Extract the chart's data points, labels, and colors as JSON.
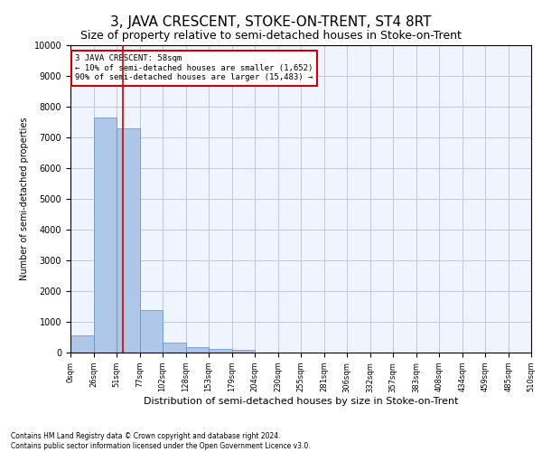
{
  "title": "3, JAVA CRESCENT, STOKE-ON-TRENT, ST4 8RT",
  "subtitle": "Size of property relative to semi-detached houses in Stoke-on-Trent",
  "xlabel": "Distribution of semi-detached houses by size in Stoke-on-Trent",
  "ylabel": "Number of semi-detached properties",
  "footer": "Contains HM Land Registry data © Crown copyright and database right 2024.\nContains public sector information licensed under the Open Government Licence v3.0.",
  "bin_edges": [
    0,
    26,
    51,
    77,
    102,
    128,
    153,
    179,
    204,
    230,
    255,
    281,
    306,
    332,
    357,
    383,
    408,
    434,
    459,
    485,
    510
  ],
  "bar_heights": [
    550,
    7650,
    7300,
    1370,
    320,
    165,
    120,
    100,
    0,
    0,
    0,
    0,
    0,
    0,
    0,
    0,
    0,
    0,
    0,
    0
  ],
  "bar_color": "#aec6e8",
  "bar_edge_color": "#5a8fc4",
  "property_size": 58,
  "property_label": "3 JAVA CRESCENT: 58sqm",
  "pct_smaller": 10,
  "count_smaller": 1652,
  "pct_larger": 90,
  "count_larger": 15483,
  "vline_color": "#cc0000",
  "annotation_box_color": "#cc0000",
  "ylim": [
    0,
    10000
  ],
  "yticks": [
    0,
    1000,
    2000,
    3000,
    4000,
    5000,
    6000,
    7000,
    8000,
    9000,
    10000
  ],
  "grid_color": "#c0c8e0",
  "background_color": "#f0f4ff",
  "title_fontsize": 11,
  "subtitle_fontsize": 9
}
